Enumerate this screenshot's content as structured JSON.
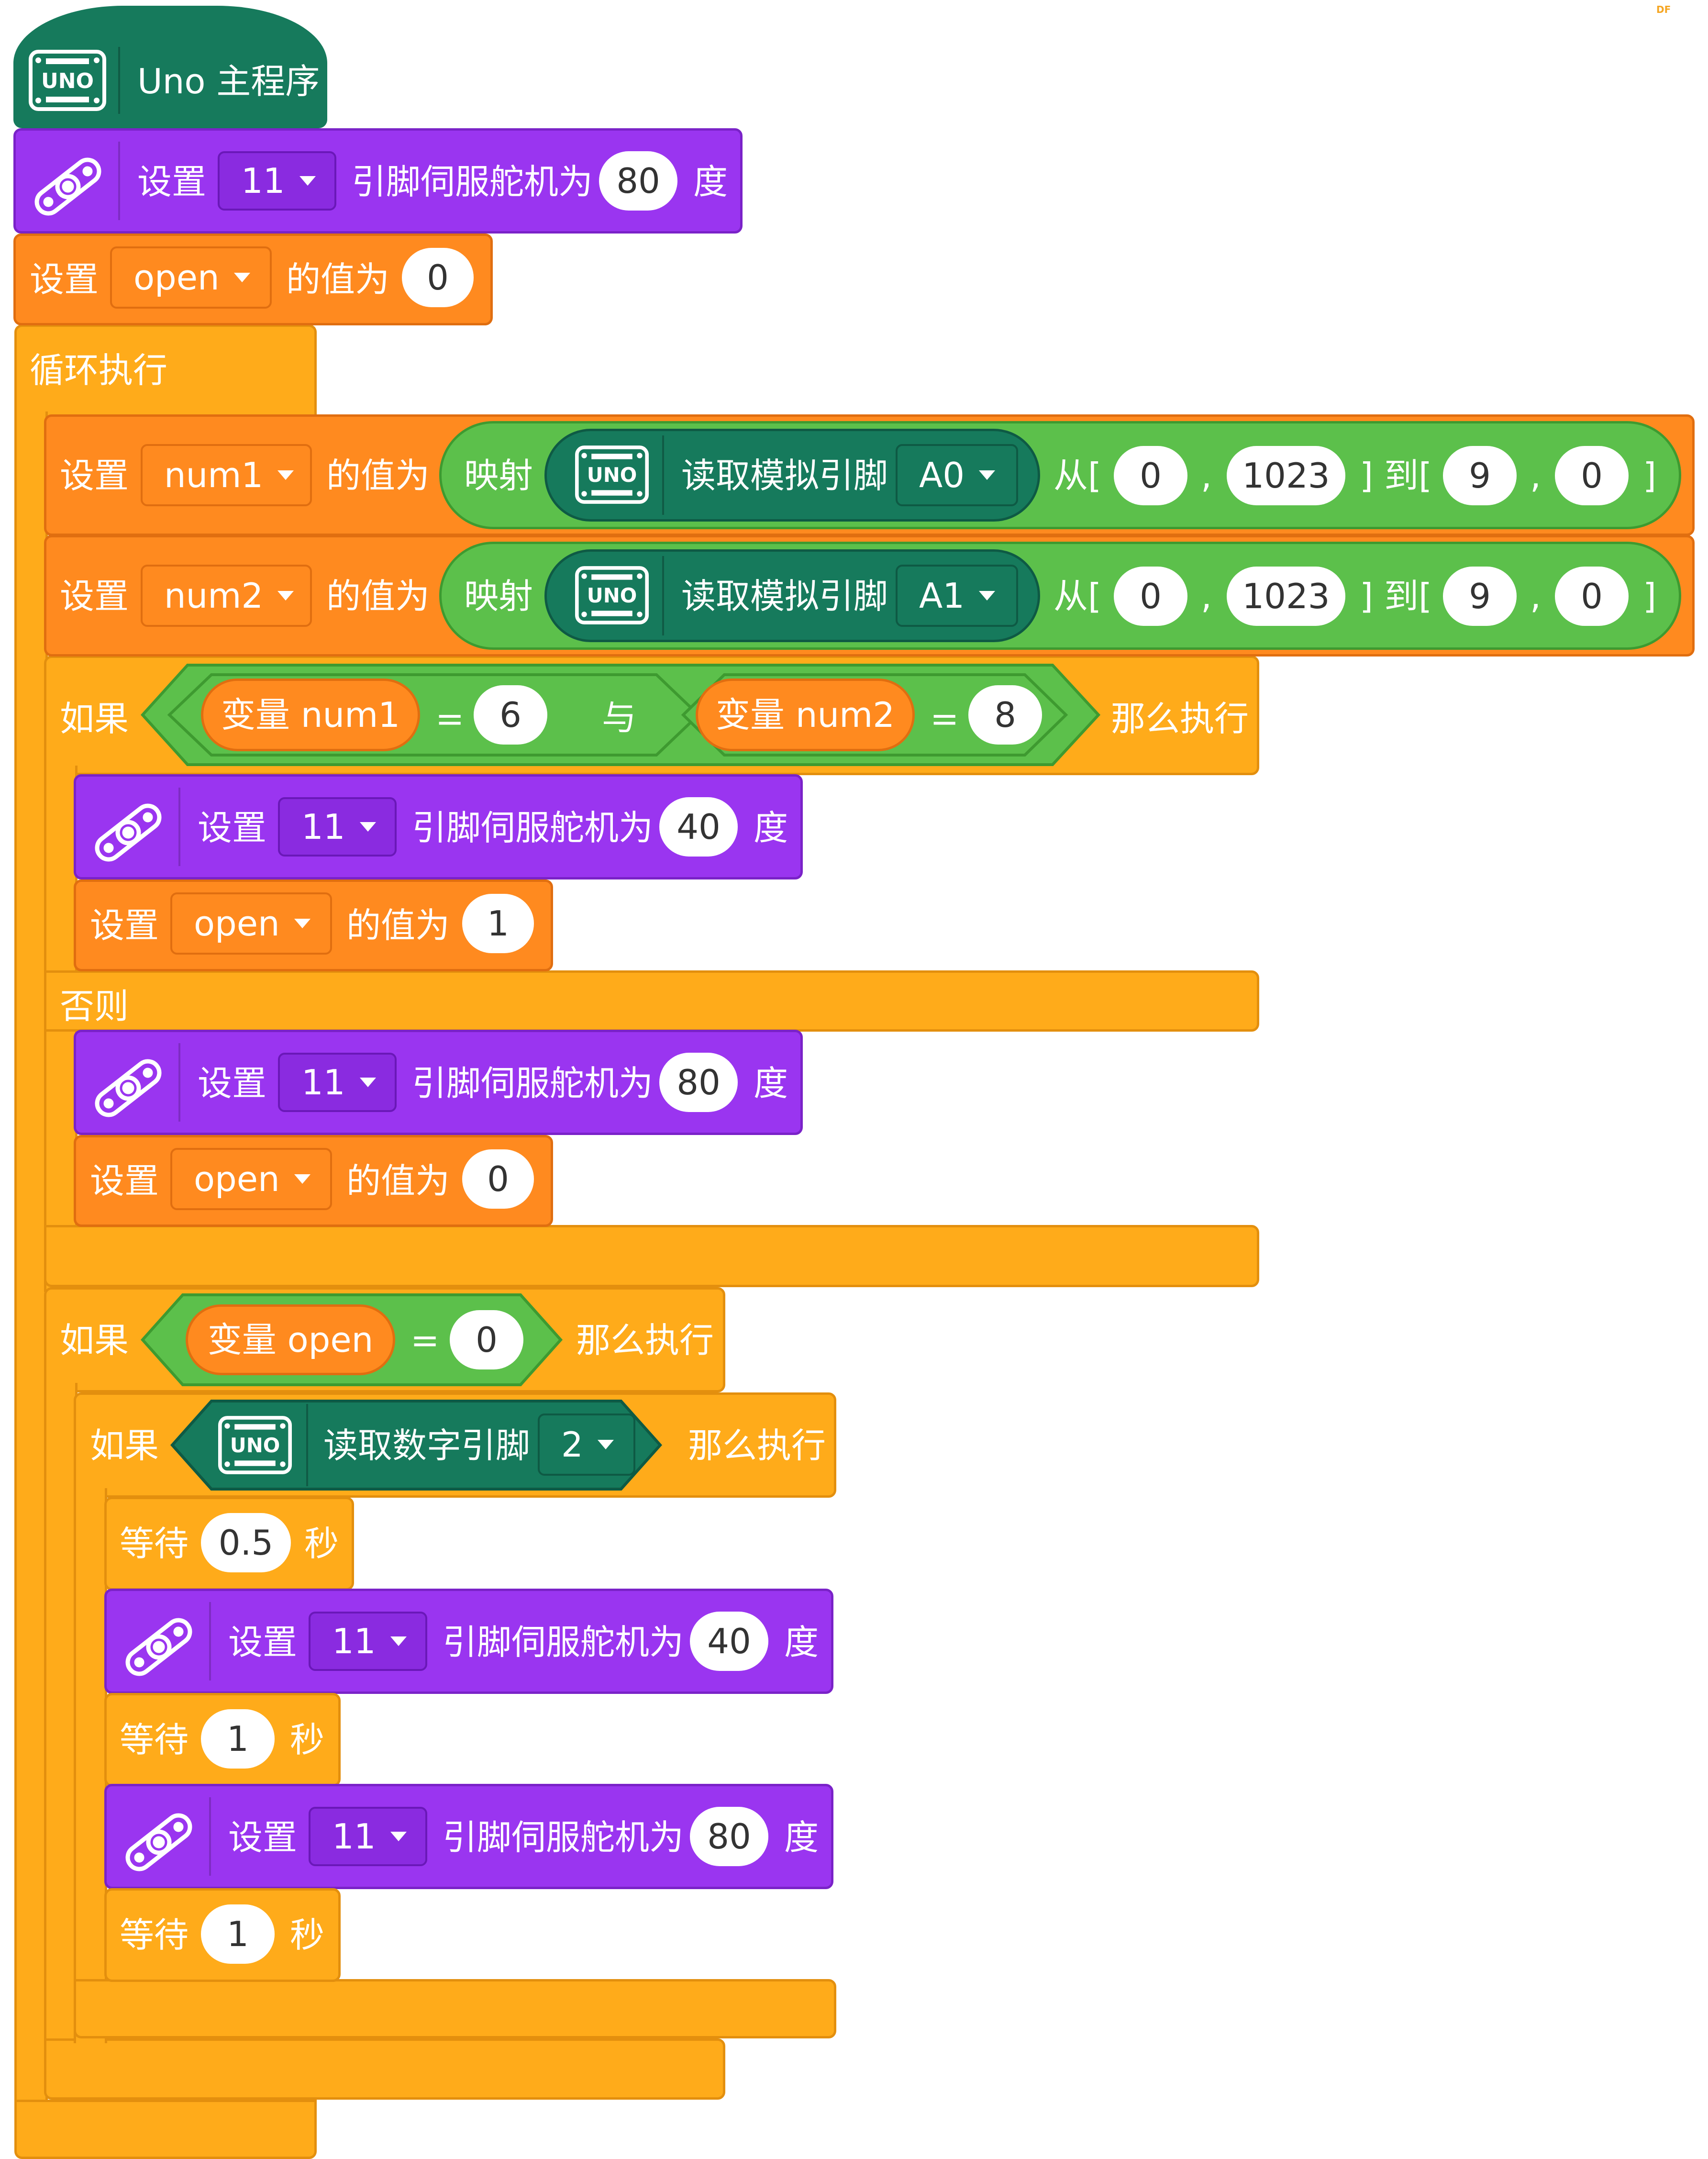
{
  "program": {
    "title": "Uno 主程序",
    "uno_label": "UNO"
  },
  "labels": {
    "set": "设置",
    "servo_pin": "引脚伺服舵机为",
    "degree": "度",
    "value_is": "的值为",
    "loop": "循环执行",
    "map": "映射",
    "read_analog": "读取模拟引脚",
    "from": "从[",
    "comma": ",",
    "to": "] 到[",
    "close": "]",
    "if": "如果",
    "then": "那么执行",
    "else": "否则",
    "and": "与",
    "eq": "=",
    "wait": "等待",
    "sec": "秒",
    "read_digital": "读取数字引脚"
  },
  "blocks": {
    "servo1": {
      "pin": "11",
      "angle": "80"
    },
    "set_open1": {
      "var": "open",
      "value": "0"
    },
    "set_num1": {
      "var": "num1",
      "pin": "A0",
      "from_low": "0",
      "from_high": "1023",
      "to_low": "9",
      "to_high": "0"
    },
    "set_num2": {
      "var": "num2",
      "pin": "A1",
      "from_low": "0",
      "from_high": "1023",
      "to_low": "9",
      "to_high": "0"
    },
    "if1": {
      "left_var": "变量 num1",
      "left_val": "6",
      "right_var": "变量 num2",
      "right_val": "8"
    },
    "servo2": {
      "pin": "11",
      "angle": "40"
    },
    "set_open2": {
      "var": "open",
      "value": "1"
    },
    "servo3": {
      "pin": "11",
      "angle": "80"
    },
    "set_open3": {
      "var": "open",
      "value": "0"
    },
    "if2": {
      "var": "变量 open",
      "val": "0"
    },
    "if3": {
      "pin": "2"
    },
    "wait1": {
      "value": "0.5"
    },
    "servo4": {
      "pin": "11",
      "angle": "40"
    },
    "wait2": {
      "value": "1"
    },
    "servo5": {
      "pin": "11",
      "angle": "80"
    },
    "wait3": {
      "value": "1"
    }
  },
  "watermark": "DF"
}
